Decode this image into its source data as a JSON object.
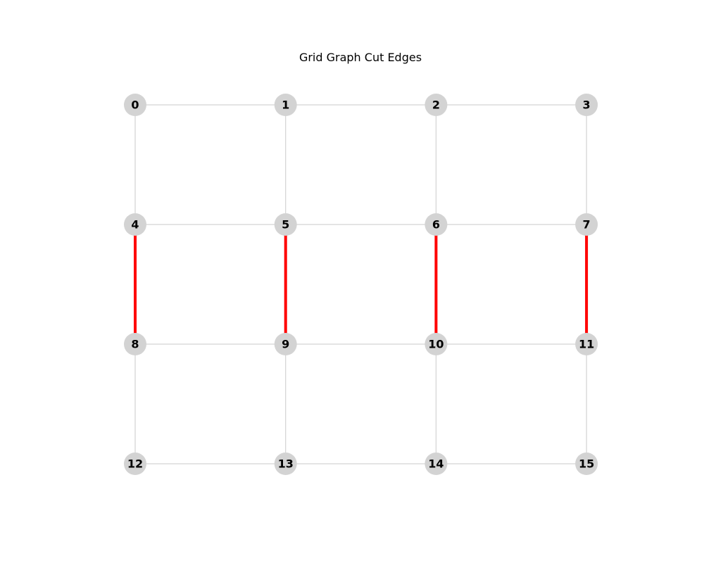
{
  "title": "Grid Graph Cut Edges",
  "colors": {
    "background": "#ffffff",
    "node_fill": "#d3d3d3",
    "edge": "#d3d3d3",
    "cut_edge": "#ff0000",
    "label": "#000000"
  },
  "graph": {
    "rows": 4,
    "cols": 4,
    "nodes": [
      {
        "id": "0",
        "row": 0,
        "col": 0
      },
      {
        "id": "1",
        "row": 0,
        "col": 1
      },
      {
        "id": "2",
        "row": 0,
        "col": 2
      },
      {
        "id": "3",
        "row": 0,
        "col": 3
      },
      {
        "id": "4",
        "row": 1,
        "col": 0
      },
      {
        "id": "5",
        "row": 1,
        "col": 1
      },
      {
        "id": "6",
        "row": 1,
        "col": 2
      },
      {
        "id": "7",
        "row": 1,
        "col": 3
      },
      {
        "id": "8",
        "row": 2,
        "col": 0
      },
      {
        "id": "9",
        "row": 2,
        "col": 1
      },
      {
        "id": "10",
        "row": 2,
        "col": 2
      },
      {
        "id": "11",
        "row": 2,
        "col": 3
      },
      {
        "id": "12",
        "row": 3,
        "col": 0
      },
      {
        "id": "13",
        "row": 3,
        "col": 1
      },
      {
        "id": "14",
        "row": 3,
        "col": 2
      },
      {
        "id": "15",
        "row": 3,
        "col": 3
      }
    ],
    "edges": [
      {
        "source": "0",
        "target": "1",
        "cut": false
      },
      {
        "source": "1",
        "target": "2",
        "cut": false
      },
      {
        "source": "2",
        "target": "3",
        "cut": false
      },
      {
        "source": "4",
        "target": "5",
        "cut": false
      },
      {
        "source": "5",
        "target": "6",
        "cut": false
      },
      {
        "source": "6",
        "target": "7",
        "cut": false
      },
      {
        "source": "8",
        "target": "9",
        "cut": false
      },
      {
        "source": "9",
        "target": "10",
        "cut": false
      },
      {
        "source": "10",
        "target": "11",
        "cut": false
      },
      {
        "source": "12",
        "target": "13",
        "cut": false
      },
      {
        "source": "13",
        "target": "14",
        "cut": false
      },
      {
        "source": "14",
        "target": "15",
        "cut": false
      },
      {
        "source": "0",
        "target": "4",
        "cut": false
      },
      {
        "source": "1",
        "target": "5",
        "cut": false
      },
      {
        "source": "2",
        "target": "6",
        "cut": false
      },
      {
        "source": "3",
        "target": "7",
        "cut": false
      },
      {
        "source": "4",
        "target": "8",
        "cut": true
      },
      {
        "source": "5",
        "target": "9",
        "cut": true
      },
      {
        "source": "6",
        "target": "10",
        "cut": true
      },
      {
        "source": "7",
        "target": "11",
        "cut": true
      },
      {
        "source": "8",
        "target": "12",
        "cut": false
      },
      {
        "source": "9",
        "target": "13",
        "cut": false
      },
      {
        "source": "10",
        "target": "14",
        "cut": false
      },
      {
        "source": "11",
        "target": "15",
        "cut": false
      }
    ]
  }
}
